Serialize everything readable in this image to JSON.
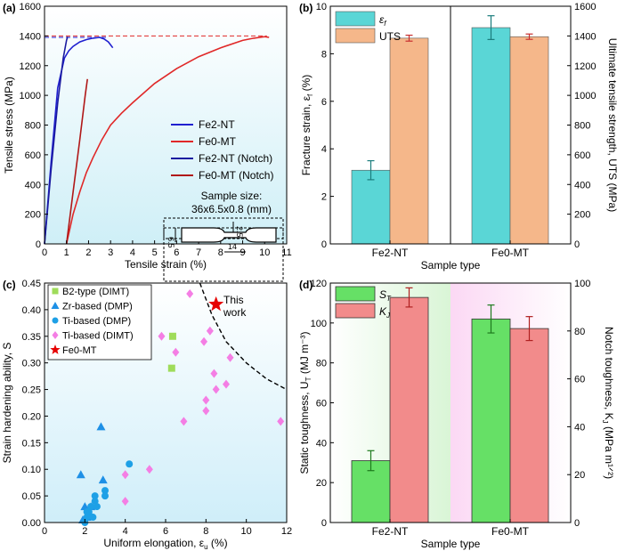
{
  "colors": {
    "fe2": "#2020d0",
    "fe0": "#e02828",
    "fe2_notch": "#1a1aa0",
    "fe0_notch": "#b01818",
    "cyan": "#5ad6d6",
    "orange": "#f5b78a",
    "green": "#66e066",
    "pink": "#f28b8b",
    "b2": "#9fdc5a",
    "zr": "#1e90e6",
    "ti_dmp": "#1ea0e6",
    "ti_dimt": "#f47ee4",
    "star": "#e60000"
  },
  "panels": {
    "a": {
      "tag": "(a)"
    },
    "b": {
      "tag": "(b)"
    },
    "c": {
      "tag": "(c)"
    },
    "d": {
      "tag": "(d)"
    }
  },
  "chart_data": [
    {
      "id": "a",
      "type": "line",
      "xlabel": "Tensile strain (%)",
      "ylabel": "Tensile stress (MPa)",
      "xlim": [
        0,
        11
      ],
      "ylim": [
        0,
        1600
      ],
      "xticks": [
        "0",
        "1",
        "2",
        "3",
        "4",
        "5",
        "6",
        "7",
        "8",
        "9",
        "10",
        "11"
      ],
      "yticks": [
        "0",
        "200",
        "400",
        "600",
        "800",
        "1000",
        "1200",
        "1400",
        "1600"
      ],
      "reference_lines": [
        1390,
        1400
      ],
      "series": [
        {
          "name": "Fe2-NT",
          "x": [
            0,
            0.3,
            0.6,
            0.9,
            1.1,
            1.3,
            1.6,
            1.9,
            2.2,
            2.5,
            2.7,
            2.9,
            3.0,
            3.1
          ],
          "y": [
            0,
            550,
            1050,
            1250,
            1300,
            1330,
            1360,
            1375,
            1385,
            1390,
            1380,
            1360,
            1340,
            1320
          ]
        },
        {
          "name": "Fe0-MT",
          "x": [
            1.0,
            1.3,
            1.6,
            1.9,
            2.2,
            2.6,
            3.0,
            3.5,
            4.0,
            5.0,
            6.0,
            7.0,
            8.0,
            9.0,
            9.5,
            10.0,
            10.2
          ],
          "y": [
            0,
            200,
            350,
            480,
            580,
            700,
            800,
            880,
            950,
            1080,
            1180,
            1260,
            1320,
            1370,
            1385,
            1395,
            1390
          ]
        },
        {
          "name": "Fe2-NT (Notch)",
          "x": [
            0,
            0.3,
            0.6,
            0.85,
            1.0,
            1.05
          ],
          "y": [
            0,
            500,
            950,
            1250,
            1370,
            1395
          ]
        },
        {
          "name": "Fe0-MT (Notch)",
          "x": [
            1.0,
            1.3,
            1.6,
            1.85,
            1.95
          ],
          "y": [
            0,
            350,
            700,
            1000,
            1110
          ]
        }
      ],
      "legend_position": "right",
      "annotation": {
        "title_line1": "Sample size:",
        "title_line2": "36x6.5x0.8 (mm)",
        "dim_height": "6.5",
        "dim_gauge_height": "2.5",
        "dim_gauge_length": "14"
      }
    },
    {
      "id": "b",
      "type": "bar",
      "xlabel": "Sample type",
      "ylabel_left": "Fracture strain, ε",
      "ylabel_left_sub": "f",
      "ylabel_left_unit": " (%)",
      "ylabel_right": "Ultimate tensile strength, UTS (MPa)",
      "categories": [
        "Fe2-NT",
        "Fe0-MT"
      ],
      "ylim_left": [
        0,
        10
      ],
      "ylim_right": [
        0,
        1600
      ],
      "yticks_left": [
        "0",
        "2",
        "4",
        "6",
        "8",
        "10"
      ],
      "yticks_right": [
        "0",
        "200",
        "400",
        "600",
        "800",
        "1000",
        "1200",
        "1400",
        "1600"
      ],
      "series": [
        {
          "name": "ε",
          "name_sub": "f",
          "axis": "left",
          "values": [
            3.1,
            9.1
          ],
          "errors": [
            0.4,
            0.5
          ]
        },
        {
          "name": "UTS",
          "axis": "right",
          "values": [
            1385,
            1395
          ],
          "errors": [
            20,
            18
          ]
        }
      ],
      "legend_position": "top-left"
    },
    {
      "id": "c",
      "type": "scatter",
      "xlabel": "Uniform elongation, ε",
      "xlabel_sub": "u",
      "xlabel_unit": " (%)",
      "ylabel": "Strain hardening ability, S",
      "xlim": [
        0,
        12
      ],
      "ylim": [
        0,
        0.45
      ],
      "xticks": [
        "0",
        "2",
        "4",
        "6",
        "8",
        "10",
        "12"
      ],
      "yticks": [
        "0.00",
        "0.05",
        "0.10",
        "0.15",
        "0.20",
        "0.25",
        "0.30",
        "0.35",
        "0.40",
        "0.45"
      ],
      "series": [
        {
          "name": "B2-type (DIMT)",
          "marker": "square",
          "points": [
            [
              6.3,
              0.29
            ],
            [
              6.35,
              0.35
            ]
          ]
        },
        {
          "name": "Zr-based (DMP)",
          "marker": "triangle",
          "points": [
            [
              1.8,
              0.09
            ],
            [
              2.0,
              0.03
            ],
            [
              2.2,
              0.02
            ],
            [
              2.8,
              0.18
            ],
            [
              2.9,
              0.08
            ],
            [
              2.1,
              0.01
            ],
            [
              1.9,
              0.005
            ],
            [
              2.3,
              0.03
            ]
          ]
        },
        {
          "name": "Ti-based (DMP)",
          "marker": "circle",
          "points": [
            [
              2.0,
              0.0
            ],
            [
              2.1,
              0.01
            ],
            [
              2.2,
              0.02
            ],
            [
              2.3,
              0.03
            ],
            [
              2.5,
              0.04
            ],
            [
              2.5,
              0.05
            ],
            [
              2.6,
              0.03
            ],
            [
              3.0,
              0.05
            ],
            [
              3.0,
              0.06
            ],
            [
              2.1,
              0.02
            ],
            [
              2.4,
              0.01
            ],
            [
              4.2,
              0.11
            ]
          ]
        },
        {
          "name": "Ti-based (DIMT)",
          "marker": "diamond",
          "points": [
            [
              4.0,
              0.04
            ],
            [
              4.0,
              0.09
            ],
            [
              5.2,
              0.1
            ],
            [
              5.8,
              0.35
            ],
            [
              6.5,
              0.32
            ],
            [
              6.9,
              0.19
            ],
            [
              7.2,
              0.43
            ],
            [
              7.9,
              0.34
            ],
            [
              8.0,
              0.21
            ],
            [
              8.0,
              0.23
            ],
            [
              8.2,
              0.36
            ],
            [
              8.4,
              0.28
            ],
            [
              9.0,
              0.26
            ],
            [
              9.2,
              0.31
            ],
            [
              8.5,
              0.25
            ],
            [
              11.7,
              0.19
            ]
          ]
        },
        {
          "name": "Fe0-MT",
          "marker": "star",
          "points": [
            [
              8.5,
              0.41
            ]
          ]
        }
      ],
      "boundary_curve": [
        [
          7.7,
          0.45
        ],
        [
          8.3,
          0.39
        ],
        [
          9.0,
          0.34
        ],
        [
          10.0,
          0.3
        ],
        [
          11.0,
          0.27
        ],
        [
          12.0,
          0.25
        ]
      ],
      "annotation_line1": "This",
      "annotation_line2": "work",
      "legend_position": "top-left"
    },
    {
      "id": "d",
      "type": "bar",
      "xlabel": "Sample type",
      "ylabel_left": "Static toughness, U",
      "ylabel_left_sub": "T",
      "ylabel_left_unit": " (MJ m⁻³)",
      "ylabel_right": "Notch toughness, K",
      "ylabel_right_sub": "J",
      "ylabel_right_unit": " (MPa m¹ᐟ²)",
      "categories": [
        "Fe2-NT",
        "Fe0-MT"
      ],
      "ylim_left": [
        0,
        120
      ],
      "ylim_right": [
        0,
        100
      ],
      "yticks_left": [
        "0",
        "20",
        "40",
        "60",
        "80",
        "100",
        "120"
      ],
      "yticks_right": [
        "0",
        "20",
        "40",
        "60",
        "80",
        "100"
      ],
      "series": [
        {
          "name": "S",
          "name_sub": "T",
          "axis": "left",
          "values": [
            31,
            102
          ],
          "errors": [
            5,
            7
          ]
        },
        {
          "name": "K",
          "name_sub": "J",
          "axis": "right",
          "values": [
            94,
            81
          ],
          "errors": [
            4,
            5
          ]
        }
      ],
      "legend_position": "top-left"
    }
  ]
}
